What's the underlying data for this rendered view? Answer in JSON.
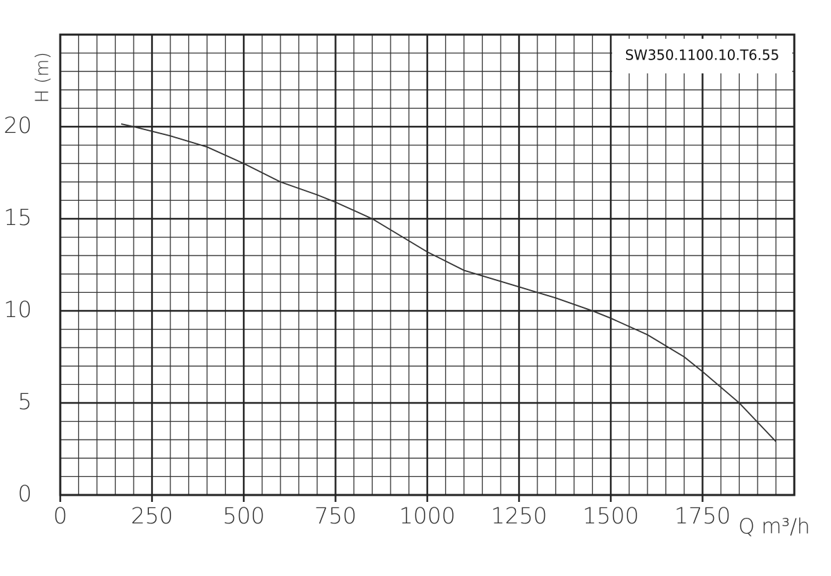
{
  "chart_data": {
    "type": "line",
    "annotation": "SW350.1100.10.T6.55",
    "xlabel": "Q m³/h",
    "ylabel": "H (m)",
    "x": [
      166,
      200,
      300,
      400,
      500,
      600,
      700,
      750,
      850,
      1000,
      1100,
      1250,
      1350,
      1450,
      1500,
      1600,
      1700,
      1750,
      1850,
      1950
    ],
    "series": [
      {
        "color": "#333333",
        "values": [
          20.15,
          20.0,
          19.5,
          18.9,
          18.0,
          17.0,
          16.3,
          15.9,
          15.0,
          13.2,
          12.2,
          11.3,
          10.7,
          10.0,
          9.6,
          8.7,
          7.5,
          6.7,
          5.0,
          2.9
        ]
      }
    ],
    "xlim": [
      0,
      2000
    ],
    "ylim": [
      0,
      25
    ],
    "xticks": [
      0,
      250,
      500,
      750,
      1000,
      1250,
      1500,
      1750
    ],
    "yticks": [
      0,
      5,
      10,
      15,
      20
    ],
    "grid": true
  }
}
